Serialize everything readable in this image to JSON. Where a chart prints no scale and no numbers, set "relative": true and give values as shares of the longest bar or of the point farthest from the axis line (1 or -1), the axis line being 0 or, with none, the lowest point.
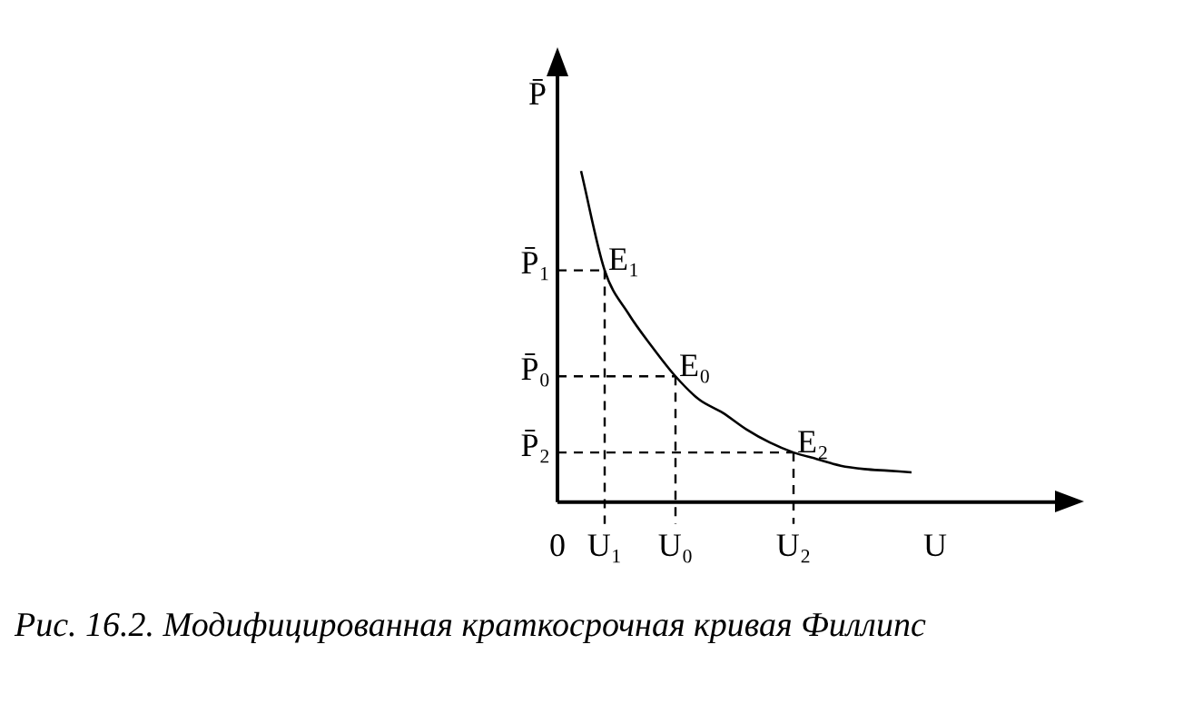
{
  "chart_data": {
    "type": "line",
    "relative": true,
    "ylabel": "P̄",
    "categories": [
      "0",
      null,
      "U₁",
      null,
      null,
      "U₀",
      null,
      null,
      null,
      null,
      "U₂",
      null,
      null,
      null,
      null,
      null,
      "U",
      null,
      null,
      null,
      null
    ],
    "series": [
      {
        "color": "#000000",
        "values": [
          null,
          1,
          0.7,
          0.57,
          0.47,
          0.38,
          0.31,
          0.27,
          0.22,
          0.18,
          0.15,
          0.13,
          0.11,
          0.1,
          0.095,
          0.09,
          null,
          null,
          null,
          null,
          null
        ]
      }
    ],
    "ref_lines": [
      {
        "axis": "y",
        "value": 0.7,
        "label": "P̄₁",
        "line_style": "dashed"
      },
      {
        "axis": "y",
        "value": 0.38,
        "label": "P̄₀",
        "line_style": "dashed"
      },
      {
        "axis": "y",
        "value": 0.15,
        "label": "P̄₂",
        "line_style": "dashed"
      }
    ],
    "annotations": [
      {
        "text": "E₁",
        "x": "U₁",
        "y": 0.7
      },
      {
        "text": "E₀",
        "x": "U₀",
        "y": 0.38
      },
      {
        "text": "E₂",
        "x": "U₂",
        "y": 0.15
      },
      "Рис. 16.2. Модифицированная краткосрочная кривая Филлипс"
    ],
    "legend": false,
    "marker": "none",
    "line_style": "solid"
  }
}
